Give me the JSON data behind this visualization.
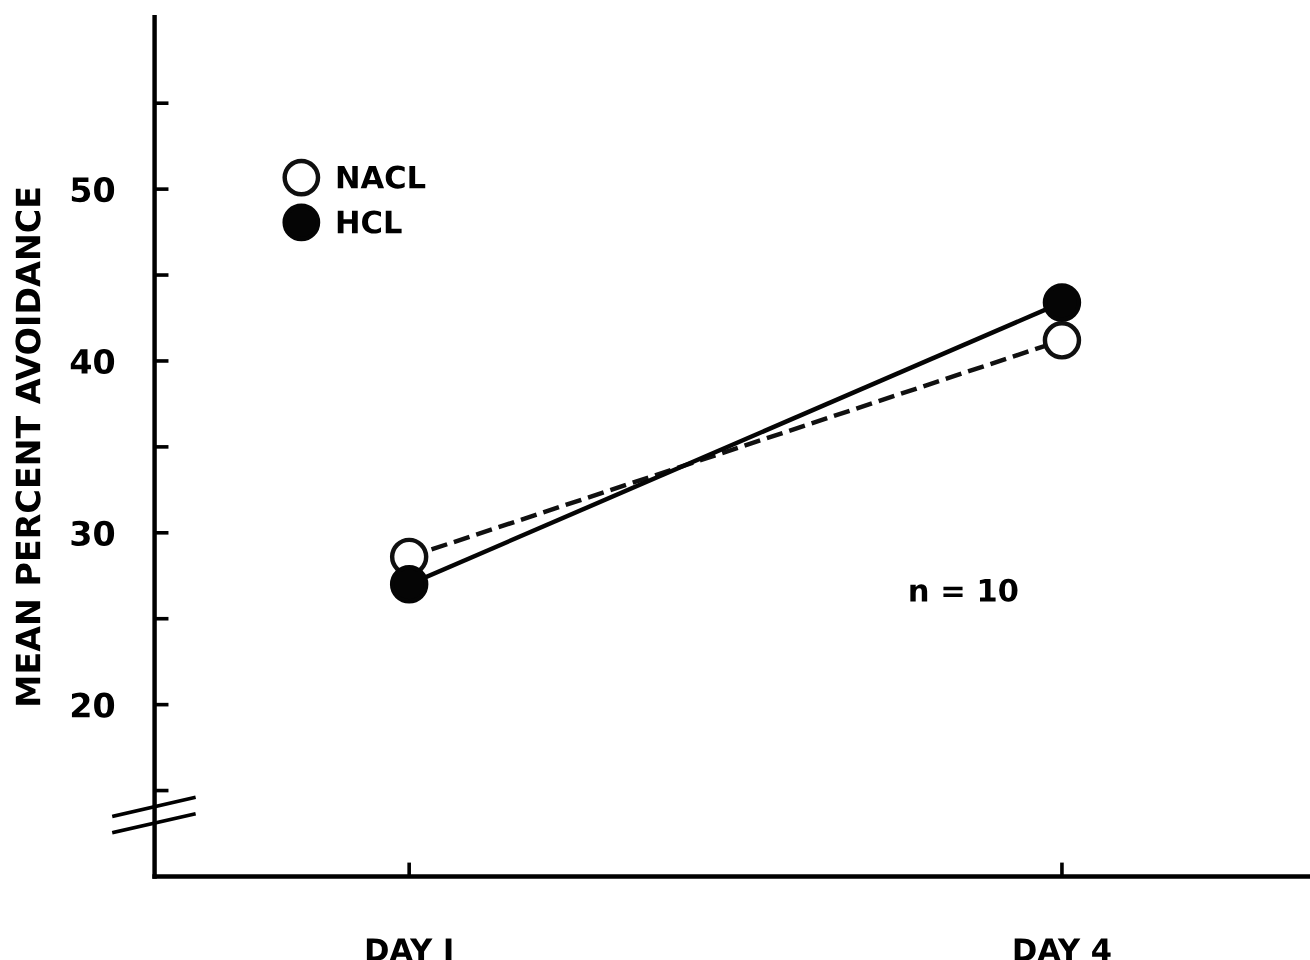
{
  "chart_data": {
    "type": "line",
    "ylabel": "MEAN PERCENT AVOIDANCE",
    "categories": [
      "DAY I",
      "DAY 4"
    ],
    "series": [
      {
        "name": "NACL",
        "color": "#101010",
        "colors": [
          "#ffffff",
          "#ffffff"
        ],
        "values": [
          28.6,
          41.2
        ],
        "line_style": "dashed",
        "marker": "circle"
      },
      {
        "name": "HCL",
        "color": "#050505",
        "colors": [
          "#050505",
          "#050505"
        ],
        "values": [
          27.0,
          43.4
        ],
        "line_style": "solid",
        "marker": "circle"
      }
    ],
    "ylim": [
      10,
      60
    ],
    "yticks": [
      {
        "value": 15,
        "label": null
      },
      20,
      {
        "value": 25,
        "label": null
      },
      30,
      {
        "value": 35,
        "label": null
      },
      40,
      {
        "value": 45,
        "label": null
      },
      50,
      {
        "value": 55,
        "label": null
      }
    ],
    "annotations": [
      "n = 10"
    ],
    "legend": "top left",
    "grid": false
  }
}
